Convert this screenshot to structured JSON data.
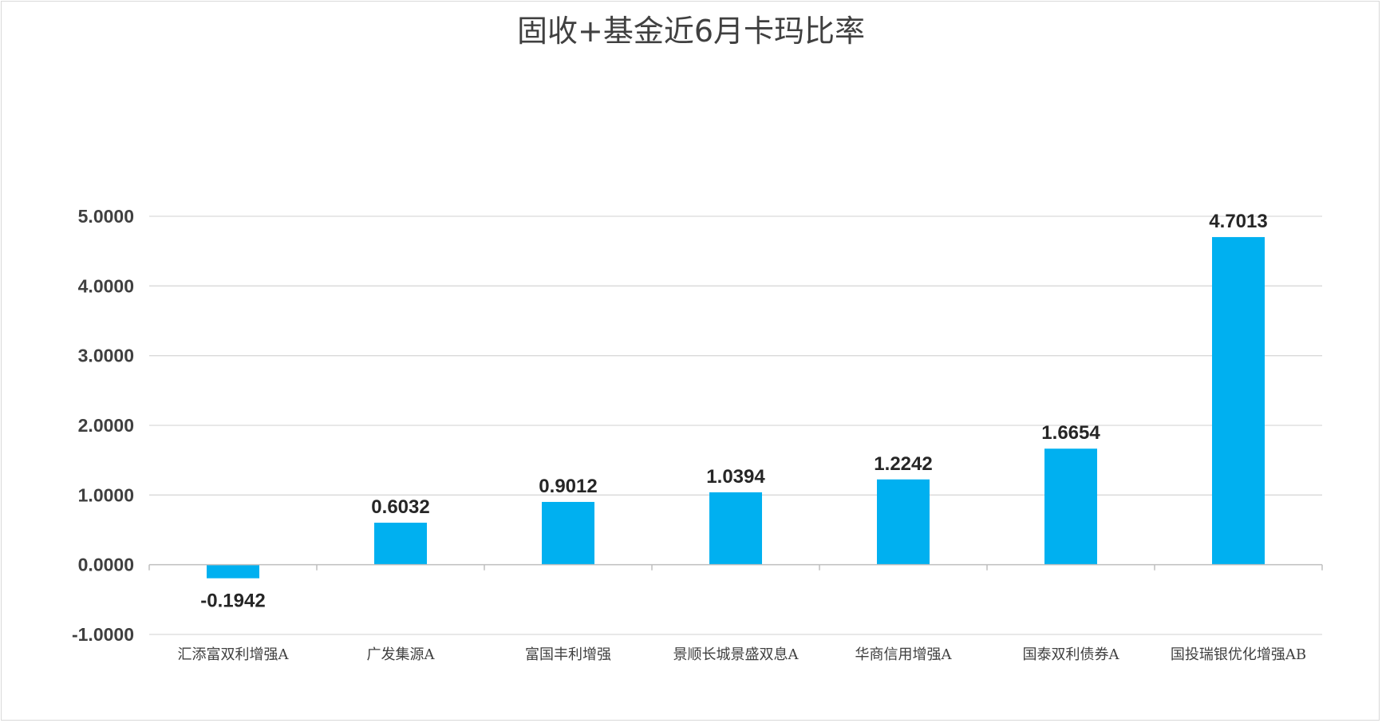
{
  "chart_data": {
    "type": "bar",
    "title": "固收+基金近6月卡玛比率",
    "xlabel": "",
    "ylabel": "",
    "categories": [
      "汇添富双利增强A",
      "广发集源A",
      "富国丰利增强",
      "景顺长城景盛双息A",
      "华商信用增强A",
      "国泰双利债券A",
      "国投瑞银优化增强AB"
    ],
    "values": [
      -0.1942,
      0.6032,
      0.9012,
      1.0394,
      1.2242,
      1.6654,
      4.7013
    ],
    "value_labels": [
      "-0.1942",
      "0.6032",
      "0.9012",
      "1.0394",
      "1.2242",
      "1.6654",
      "4.7013"
    ],
    "ylim": [
      -1,
      5
    ],
    "yticks": [
      5,
      4,
      3,
      2,
      1,
      0,
      -1
    ],
    "ytick_labels": [
      "5.0000",
      "4.0000",
      "3.0000",
      "2.0000",
      "1.0000",
      "0.0000",
      "-1.0000"
    ],
    "grid": true,
    "legend": "none",
    "bar_color": "#00b0f0"
  }
}
